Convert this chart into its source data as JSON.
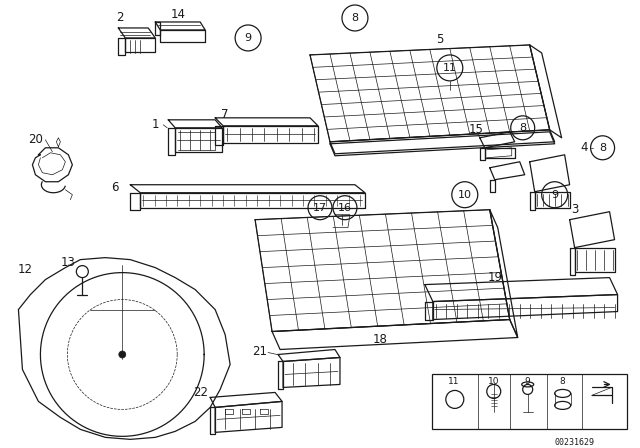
{
  "bg_color": "#ffffff",
  "diagram_id": "00231629",
  "gray": "#1a1a1a",
  "lgray": "#666666",
  "lw_main": 0.9,
  "lw_detail": 0.5,
  "fontsize_label": 8.5,
  "fontsize_circle": 8,
  "fontsize_small": 6.5
}
